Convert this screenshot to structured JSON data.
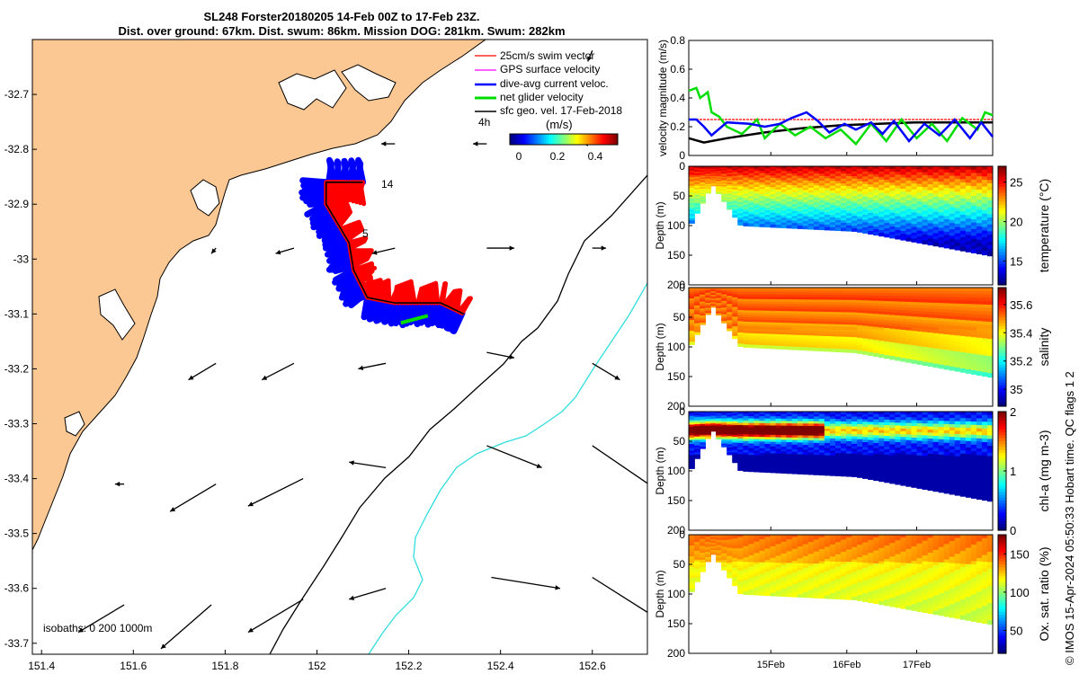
{
  "title": {
    "line1": "SL248 Forster20180205 14-Feb 00Z to 17-Feb 23Z.",
    "line2": "Dist. over ground: 67km. Dist. swum: 86km. Mission DOG: 281km. Swum: 282km"
  },
  "copyright": "© IMOS 15-Apr-2024 05:50:33 Hobart time. QC flags 1  2",
  "colors": {
    "land": "#fbc893",
    "swim_vector": "#ff0000",
    "gps_velocity": "#ff00ff",
    "dive_avg": "#0000ff",
    "net_velocity": "#00dd00",
    "sfc_geo": "#000000",
    "isobath_200": "#000000",
    "isobath_1000": "#33dddd"
  },
  "chart_data": [
    {
      "type": "map",
      "xlim": [
        151.38,
        152.72
      ],
      "ylim": [
        -33.72,
        -32.6
      ],
      "x_ticks": [
        "151.4",
        "151.6",
        "151.8",
        "152",
        "152.2",
        "152.4",
        "152.6"
      ],
      "y_ticks": [
        "-32.7",
        "-32.8",
        "-32.9",
        "-33",
        "-33.1",
        "-33.2",
        "-33.3",
        "-33.4",
        "-33.5",
        "-33.6",
        "-33.7"
      ],
      "legend": {
        "items": [
          "25cm/s swim vector",
          "GPS surface velocity",
          "dive-avg current veloc.",
          "net glider velocity",
          "sfc geo. vel. 17-Feb-2018"
        ],
        "label_4h": "4h",
        "colorbar_title": "(m/s)",
        "colorbar_ticks": [
          "0",
          "0.2",
          "0.4"
        ]
      },
      "day_labels": [
        "14",
        "5"
      ],
      "isobaths_label": "isobaths: 0   200  1000m",
      "track": [
        [
          152.1,
          -32.86
        ],
        [
          152.02,
          -32.86
        ],
        [
          152.02,
          -32.9
        ],
        [
          152.07,
          -32.97
        ],
        [
          152.08,
          -33.02
        ],
        [
          152.11,
          -33.07
        ],
        [
          152.17,
          -33.08
        ],
        [
          152.27,
          -33.08
        ],
        [
          152.32,
          -33.1
        ]
      ],
      "sfc_geo_vectors": [
        [
          151.58,
          -33.41,
          -0.02,
          0.0
        ],
        [
          151.78,
          -33.41,
          -0.1,
          -0.05
        ],
        [
          151.97,
          -33.4,
          -0.12,
          -0.05
        ],
        [
          152.15,
          -33.38,
          -0.08,
          0.01
        ],
        [
          152.37,
          -33.34,
          0.12,
          -0.04
        ],
        [
          152.6,
          -33.34,
          0.14,
          -0.08
        ],
        [
          151.58,
          -33.63,
          -0.1,
          -0.05
        ],
        [
          151.77,
          -33.63,
          -0.11,
          -0.08
        ],
        [
          151.97,
          -33.62,
          -0.12,
          -0.06
        ],
        [
          152.15,
          -33.6,
          -0.08,
          -0.02
        ],
        [
          152.38,
          -33.58,
          0.15,
          -0.02
        ],
        [
          152.6,
          -33.58,
          0.17,
          -0.09
        ],
        [
          151.78,
          -33.19,
          -0.06,
          -0.03
        ],
        [
          151.95,
          -33.19,
          -0.07,
          -0.03
        ],
        [
          152.15,
          -33.19,
          -0.06,
          -0.01
        ],
        [
          152.37,
          -33.17,
          0.06,
          -0.01
        ],
        [
          152.6,
          -33.19,
          0.06,
          -0.03
        ],
        [
          151.78,
          -32.98,
          -0.01,
          -0.01
        ],
        [
          151.95,
          -32.98,
          -0.04,
          -0.01
        ],
        [
          152.17,
          -32.98,
          -0.05,
          -0.01
        ],
        [
          152.37,
          -32.98,
          0.06,
          0.0
        ],
        [
          152.6,
          -32.98,
          0.03,
          0.0
        ],
        [
          152.17,
          -32.79,
          -0.03,
          0.0
        ],
        [
          152.37,
          -32.79,
          -0.03,
          0.0
        ],
        [
          152.6,
          -32.79,
          -0.02,
          0.0
        ],
        [
          152.6,
          -32.62,
          -0.01,
          -0.02
        ]
      ]
    },
    {
      "type": "line",
      "ylabel": "velocity magnitude (m/s)",
      "ylim": [
        0,
        0.8
      ],
      "y_ticks": [
        "0",
        "0.2",
        "0.4",
        "0.6",
        "0.8"
      ],
      "x_ticks": [
        "15Feb",
        "16Feb",
        "17Feb"
      ],
      "series": [
        {
          "name": "dive-avg current veloc.",
          "color": "#0000ff",
          "x": [
            0,
            0.1,
            0.2,
            0.3,
            0.5,
            0.8,
            1.0,
            1.2,
            1.35,
            1.55,
            1.7,
            1.85,
            2.05,
            2.2,
            2.4,
            2.55,
            2.7,
            2.9,
            3.1,
            3.3,
            3.5,
            3.7,
            3.85,
            4.0
          ],
          "y": [
            0.25,
            0.25,
            0.2,
            0.14,
            0.23,
            0.22,
            0.2,
            0.22,
            0.26,
            0.3,
            0.24,
            0.16,
            0.22,
            0.18,
            0.23,
            0.15,
            0.24,
            0.1,
            0.22,
            0.14,
            0.25,
            0.12,
            0.23,
            0.13
          ]
        },
        {
          "name": "net glider velocity",
          "color": "#00dd00",
          "x": [
            0,
            0.1,
            0.15,
            0.25,
            0.3,
            0.4,
            0.5,
            0.7,
            0.9,
            1.0,
            1.2,
            1.4,
            1.6,
            1.8,
            2.0,
            2.2,
            2.4,
            2.6,
            2.8,
            3.0,
            3.2,
            3.4,
            3.6,
            3.8,
            3.9,
            4.0
          ],
          "y": [
            0.45,
            0.47,
            0.4,
            0.44,
            0.3,
            0.27,
            0.2,
            0.15,
            0.25,
            0.12,
            0.22,
            0.14,
            0.2,
            0.12,
            0.18,
            0.08,
            0.22,
            0.1,
            0.25,
            0.12,
            0.22,
            0.1,
            0.26,
            0.18,
            0.3,
            0.28
          ]
        },
        {
          "name": "sfc geo. vel. 17-Feb-2018",
          "color": "#000000",
          "x": [
            0,
            0.2,
            0.5,
            1.0,
            1.5,
            2.0,
            2.5,
            3.0,
            3.5,
            4.0
          ],
          "y": [
            0.12,
            0.09,
            0.12,
            0.16,
            0.19,
            0.21,
            0.22,
            0.23,
            0.23,
            0.23
          ]
        },
        {
          "name": "25cm/s swim vector",
          "color": "#ff0000",
          "x": [
            0,
            4.0
          ],
          "y": [
            0.25,
            0.25
          ]
        }
      ]
    },
    {
      "type": "heatmap",
      "ylabel": "Depth (m)",
      "clabel": "temperature (°C)",
      "ylim": [
        0,
        200
      ],
      "y_ticks": [
        "0",
        "50",
        "100",
        "150",
        "200"
      ],
      "c_ticks": [
        "15",
        "20",
        "25"
      ],
      "clim": [
        12,
        27
      ],
      "surface_value": 26,
      "bottom_value": 13
    },
    {
      "type": "heatmap",
      "ylabel": "Depth (m)",
      "clabel": "salinity",
      "ylim": [
        0,
        200
      ],
      "y_ticks": [
        "0",
        "50",
        "100",
        "150",
        "200"
      ],
      "c_ticks": [
        "35",
        "35.2",
        "35.4",
        "35.6"
      ],
      "clim": [
        34.88,
        35.72
      ],
      "surface_value": 35.55,
      "bottom_value": 35.25
    },
    {
      "type": "heatmap",
      "ylabel": "Depth (m)",
      "clabel": "chl-a (mg m-3)",
      "ylim": [
        0,
        200
      ],
      "y_ticks": [
        "0",
        "50",
        "100",
        "150",
        "200"
      ],
      "c_ticks": [
        "0",
        "1",
        "2"
      ],
      "clim": [
        0,
        2
      ],
      "surface_value": 0.8,
      "bottom_value": 0.1
    },
    {
      "type": "heatmap",
      "ylabel": "Depth (m)",
      "clabel": "Ox. sat. ratio (%)",
      "ylim": [
        0,
        200
      ],
      "y_ticks": [
        "0",
        "50",
        "100",
        "150",
        "200"
      ],
      "c_ticks": [
        "50",
        "100",
        "150"
      ],
      "clim": [
        20,
        175
      ],
      "surface_value": 140,
      "bottom_value": 105
    }
  ]
}
